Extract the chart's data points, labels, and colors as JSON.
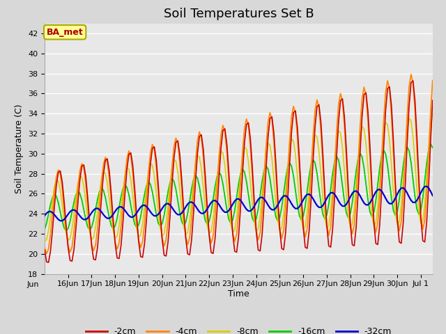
{
  "title": "Soil Temperatures Set B",
  "xlabel": "Time",
  "ylabel": "Soil Temperature (C)",
  "ylim": [
    18,
    43
  ],
  "yticks": [
    18,
    20,
    22,
    24,
    26,
    28,
    30,
    32,
    34,
    36,
    38,
    40,
    42
  ],
  "fig_bg_color": "#d8d8d8",
  "plot_bg_color": "#e8e8e8",
  "colors": {
    "-2cm": "#cc0000",
    "-4cm": "#ff8800",
    "-8cm": "#ddcc00",
    "-16cm": "#00cc00",
    "-32cm": "#0000cc"
  },
  "annotation_text": "BA_met",
  "annotation_color": "#aa0000",
  "annotation_bg": "#ffff99",
  "title_fontsize": 13,
  "axis_fontsize": 9,
  "tick_fontsize": 8
}
